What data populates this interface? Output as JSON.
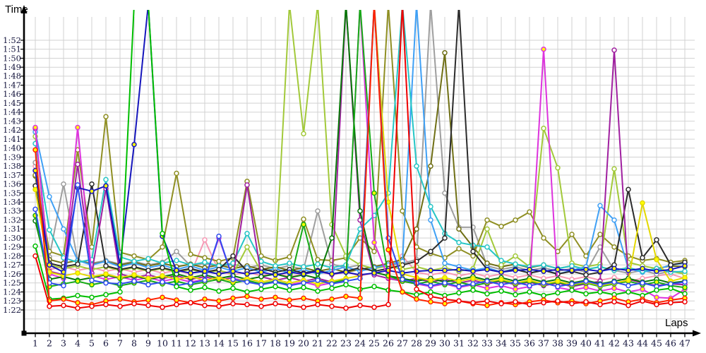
{
  "chart_data": {
    "type": "line",
    "xlabel": "Laps",
    "ylabel": "Time",
    "x_ticks": [
      1,
      2,
      3,
      4,
      5,
      6,
      7,
      8,
      9,
      10,
      11,
      12,
      13,
      14,
      15,
      16,
      17,
      18,
      19,
      20,
      21,
      22,
      23,
      24,
      25,
      26,
      27,
      28,
      29,
      30,
      31,
      32,
      33,
      34,
      35,
      36,
      37,
      38,
      39,
      40,
      41,
      42,
      43,
      44,
      45,
      46,
      47
    ],
    "y_ticks": [
      "1:22",
      "1:23",
      "1:24",
      "1:25",
      "1:26",
      "1:27",
      "1:28",
      "1:29",
      "1:30",
      "1:31",
      "1:32",
      "1:33",
      "1:34",
      "1:35",
      "1:36",
      "1:37",
      "1:38",
      "1:39",
      "1:40",
      "1:41",
      "1:42",
      "1:43",
      "1:44",
      "1:45",
      "1:46",
      "1:47",
      "1:48",
      "1:49",
      "1:50",
      "1:51",
      "1:52"
    ],
    "ylim_seconds": [
      82,
      112
    ],
    "grid": true,
    "legend": "none",
    "colors": {
      "grid": "#d2d2d2",
      "axis": "#000000",
      "tick_label": "#14143c",
      "marker_fill_a": "#ffffff",
      "marker_fill_b": "#ffff00"
    },
    "series": [
      {
        "name": "pink",
        "color": "#f799b5",
        "marker": "#ffffff",
        "values": [
          98.0,
          86.5,
          86.8,
          86.4,
          86.7,
          86.3,
          86.6,
          86.2,
          86.5,
          86.1,
          86.4,
          86.0,
          89.8,
          86.3,
          85.9,
          86.2,
          85.8,
          86.1,
          85.7,
          86.0,
          86.3,
          85.9,
          86.2,
          85.8,
          86.1,
          86.4,
          88.0,
          86.2,
          85.9,
          86.2,
          85.8,
          86.1,
          85.7,
          86.0,
          85.6,
          85.9,
          85.5,
          85.8,
          85.4,
          85.7,
          85.3,
          85.6,
          85.2,
          85.5,
          85.8,
          86.0,
          85.5
        ]
      },
      {
        "name": "gray",
        "color": "#9e9e9e",
        "marker": "#ffffff",
        "values": [
          98.4,
          87.9,
          96.0,
          87.5,
          87.2,
          87.5,
          87.1,
          87.4,
          87.0,
          87.3,
          88.5,
          86.9,
          87.2,
          86.8,
          87.1,
          86.7,
          87.0,
          86.6,
          86.9,
          86.5,
          93.0,
          87.1,
          86.7,
          87.0,
          86.6,
          86.9,
          87.2,
          87.6,
          116,
          95.0,
          91.2,
          91.2,
          86.9,
          86.5,
          86.8,
          86.4,
          86.7,
          86.3,
          86.6,
          86.2,
          89.0,
          86.4,
          86.1,
          86.4,
          86.0,
          86.3,
          86.2
        ]
      },
      {
        "name": "olive-dark",
        "color": "#6f6f15",
        "marker": "#ffffff",
        "values": [
          96.9,
          87.6,
          87.2,
          87.5,
          87.1,
          87.4,
          87.0,
          87.3,
          86.9,
          87.2,
          86.8,
          87.1,
          86.7,
          87.0,
          86.6,
          86.9,
          86.5,
          86.8,
          86.4,
          86.7,
          86.3,
          86.6,
          86.2,
          86.5,
          86.8,
          87.2,
          87.6,
          91.0,
          98.0,
          110.6,
          91.0,
          89.0,
          87.2,
          86.8,
          87.1,
          86.7,
          87.0,
          86.6,
          86.9,
          86.5,
          86.8,
          86.4,
          86.7,
          86.3,
          86.6,
          86.9,
          86.8
        ]
      },
      {
        "name": "olive",
        "color": "#8f8f23",
        "marker": "#ffffff",
        "values": [
          97.0,
          88.5,
          88.0,
          99.8,
          89.0,
          103.5,
          88.4,
          88.0,
          87.6,
          89.0,
          97.2,
          88.2,
          87.8,
          87.4,
          87.8,
          96.3,
          88.0,
          87.5,
          87.9,
          92.1,
          87.6,
          87.5,
          87.8,
          90.0,
          88.5,
          116,
          93.0,
          89.0,
          88.3,
          87.8,
          88.8,
          88.0,
          92.0,
          91.3,
          92.0,
          92.9,
          90.0,
          88.5,
          90.4,
          88.0,
          90.4,
          89.0,
          88.0,
          87.5,
          87.7,
          87.3,
          87.5
        ]
      },
      {
        "name": "yellowgreen",
        "color": "#a2c93a",
        "marker": "#ffffff",
        "values": [
          101.3,
          87.0,
          86.6,
          86.9,
          86.5,
          86.8,
          86.4,
          86.7,
          86.3,
          86.6,
          86.2,
          86.5,
          86.1,
          86.4,
          86.0,
          89.0,
          86.3,
          86.6,
          116,
          101.6,
          116,
          91.5,
          88.0,
          87.0,
          86.6,
          86.9,
          86.5,
          86.8,
          86.4,
          86.7,
          86.3,
          86.6,
          91.0,
          87.0,
          88.0,
          86.8,
          102.2,
          97.8,
          87.2,
          86.8,
          87.1,
          97.7,
          87.3,
          86.9,
          86.6,
          86.3,
          86.0
        ]
      },
      {
        "name": "skyblue",
        "color": "#3fa0f5",
        "marker": "#ffffff",
        "values": [
          101.8,
          94.6,
          91.0,
          87.5,
          87.0,
          87.4,
          86.8,
          87.2,
          86.7,
          87.0,
          86.5,
          86.9,
          86.4,
          86.8,
          86.3,
          86.7,
          86.2,
          86.6,
          86.1,
          86.5,
          86.0,
          86.4,
          86.8,
          86.3,
          86.7,
          87.0,
          87.4,
          116,
          92.0,
          87.2,
          86.8,
          86.4,
          86.7,
          86.2,
          86.6,
          86.1,
          86.5,
          86.0,
          86.4,
          86.8,
          93.6,
          92.0,
          86.6,
          86.2,
          86.5,
          87.0,
          87.2
        ]
      },
      {
        "name": "cyan",
        "color": "#26c6c6",
        "marker": "#ffffff",
        "values": [
          100.5,
          90.9,
          87.8,
          87.3,
          87.6,
          96.5,
          87.9,
          87.4,
          87.7,
          87.2,
          87.5,
          87.0,
          87.3,
          86.9,
          87.2,
          90.5,
          87.4,
          86.9,
          87.2,
          86.8,
          87.1,
          86.7,
          87.0,
          91.0,
          92.5,
          95.0,
          116,
          98.0,
          93.5,
          90.5,
          89.5,
          89.2,
          89.0,
          87.5,
          87.1,
          86.8,
          87.0,
          86.6,
          86.9,
          86.5,
          86.8,
          86.4,
          86.7,
          86.3,
          86.6,
          86.2,
          86.3
        ]
      },
      {
        "name": "black",
        "color": "#2b2b2b",
        "marker": "#ffffff",
        "values": [
          95.8,
          87.2,
          86.8,
          87.1,
          96.0,
          86.9,
          86.5,
          86.8,
          86.4,
          86.7,
          86.3,
          86.6,
          86.2,
          86.5,
          88.0,
          86.3,
          86.6,
          86.2,
          86.5,
          86.1,
          86.4,
          86.0,
          86.3,
          86.7,
          86.3,
          86.6,
          87.0,
          87.4,
          88.5,
          90.0,
          116,
          88.5,
          86.5,
          86.2,
          86.5,
          86.1,
          86.4,
          86.0,
          86.3,
          85.9,
          86.2,
          87.0,
          95.4,
          87.8,
          89.8,
          87.0,
          87.3
        ]
      },
      {
        "name": "purple",
        "color": "#a020a0",
        "marker": "#ffffff",
        "values": [
          102.2,
          86.3,
          85.9,
          98.2,
          86.1,
          95.5,
          86.0,
          85.6,
          85.9,
          85.5,
          85.8,
          85.4,
          85.7,
          85.3,
          85.6,
          95.9,
          85.7,
          85.3,
          85.6,
          85.2,
          85.5,
          85.1,
          116,
          92.0,
          85.9,
          85.5,
          85.2,
          85.5,
          85.1,
          85.4,
          85.0,
          85.3,
          84.9,
          85.2,
          84.8,
          85.1,
          84.7,
          85.0,
          84.6,
          84.9,
          85.2,
          110.9,
          85.4,
          85.0,
          84.7,
          84.9,
          84.8
        ]
      },
      {
        "name": "magenta",
        "color": "#dd33dd",
        "marker": "#ffff00",
        "values": [
          102.3,
          86.0,
          85.5,
          102.3,
          85.8,
          85.4,
          85.7,
          85.3,
          85.6,
          85.2,
          85.5,
          85.1,
          85.4,
          90.0,
          85.5,
          85.2,
          84.9,
          85.2,
          84.8,
          85.1,
          84.7,
          85.0,
          85.3,
          116,
          89.5,
          85.6,
          85.2,
          84.9,
          84.6,
          84.9,
          84.5,
          84.8,
          84.4,
          84.7,
          84.3,
          84.6,
          111.0,
          84.5,
          84.2,
          84.5,
          84.1,
          84.4,
          84.0,
          84.3,
          83.4,
          83.3,
          84.3
        ]
      },
      {
        "name": "darkgreen",
        "color": "#077807",
        "marker": "#ffffff",
        "values": [
          91.9,
          85.4,
          85.7,
          85.3,
          85.6,
          85.9,
          85.5,
          85.8,
          85.4,
          85.7,
          86.0,
          85.6,
          85.9,
          85.5,
          85.8,
          85.4,
          85.7,
          86.0,
          85.6,
          85.9,
          85.5,
          90.0,
          116,
          93.0,
          86.2,
          85.8,
          85.5,
          85.2,
          85.5,
          85.1,
          85.4,
          85.7,
          85.3,
          85.6,
          85.2,
          85.5,
          85.1,
          85.4,
          85.0,
          85.3,
          84.9,
          85.2,
          85.5,
          85.1,
          85.4,
          85.0,
          85.2
        ]
      },
      {
        "name": "green-mid",
        "color": "#16aa16",
        "marker": "#ffff00",
        "values": [
          92.5,
          84.6,
          84.9,
          85.2,
          84.8,
          85.1,
          84.7,
          85.0,
          85.3,
          84.9,
          85.2,
          84.8,
          85.1,
          85.4,
          85.0,
          85.3,
          84.9,
          85.2,
          84.8,
          91.5,
          85.3,
          85.0,
          85.4,
          116,
          95.0,
          85.8,
          85.2,
          84.9,
          85.2,
          84.8,
          85.1,
          84.7,
          85.0,
          85.3,
          84.9,
          85.2,
          84.8,
          85.1,
          84.7,
          85.0,
          84.6,
          84.9,
          85.2,
          84.8,
          85.1,
          84.7,
          84.5
        ]
      },
      {
        "name": "yellow",
        "color": "#e3d800",
        "marker": "#ffff00",
        "values": [
          95.4,
          86.2,
          85.8,
          86.1,
          85.7,
          86.0,
          85.6,
          85.9,
          85.5,
          85.8,
          85.4,
          85.7,
          85.3,
          85.6,
          85.2,
          85.5,
          85.1,
          85.4,
          85.0,
          85.3,
          84.9,
          85.2,
          85.5,
          85.8,
          116,
          94.0,
          86.0,
          85.6,
          85.3,
          85.6,
          85.2,
          85.5,
          85.1,
          85.4,
          85.0,
          85.3,
          84.9,
          85.2,
          84.8,
          85.1,
          84.7,
          85.0,
          85.3,
          93.9,
          87.6,
          85.2,
          85.6
        ]
      },
      {
        "name": "navy",
        "color": "#1616bc",
        "marker": "#ffff00",
        "values": [
          97.5,
          87.0,
          86.2,
          95.6,
          95.2,
          95.8,
          87.0,
          100.4,
          116,
          90.2,
          86.4,
          86.1,
          86.3,
          86.0,
          86.3,
          86.0,
          86.2,
          85.9,
          86.2,
          86.0,
          86.3,
          86.0,
          86.2,
          85.9,
          86.1,
          86.4,
          86.1,
          86.3,
          86.4,
          86.4,
          86.5,
          86.3,
          86.5,
          86.2,
          86.4,
          86.5,
          86.3,
          86.5,
          86.4,
          86.5,
          86.3,
          86.6,
          86.4,
          86.6,
          86.3,
          86.5,
          86.9
        ]
      },
      {
        "name": "blue",
        "color": "#2f4cee",
        "marker": "#ffffff",
        "values": [
          93.2,
          85.0,
          84.7,
          95.9,
          85.3,
          85.0,
          84.9,
          85.2,
          84.8,
          85.1,
          84.7,
          85.0,
          85.3,
          90.2,
          85.4,
          85.1,
          84.8,
          85.1,
          84.7,
          85.0,
          85.3,
          84.9,
          85.2,
          85.5,
          116,
          90.0,
          85.4,
          85.0,
          84.7,
          85.0,
          84.6,
          84.9,
          85.2,
          84.8,
          85.1,
          84.7,
          85.0,
          84.6,
          84.9,
          85.2,
          84.8,
          85.1,
          84.7,
          85.0,
          84.6,
          84.9,
          85.1
        ]
      },
      {
        "name": "green",
        "color": "#00be00",
        "marker": "#ffffff",
        "values": [
          89.1,
          83.2,
          83.3,
          83.6,
          83.4,
          83.7,
          84.0,
          116,
          116,
          90.5,
          84.6,
          84.2,
          84.5,
          84.1,
          84.4,
          84.0,
          84.3,
          84.6,
          84.2,
          84.5,
          84.1,
          84.4,
          84.8,
          84.3,
          84.6,
          84.2,
          84.0,
          83.7,
          84.0,
          83.6,
          83.9,
          84.2,
          83.8,
          84.1,
          83.7,
          84.0,
          83.6,
          83.9,
          84.2,
          83.8,
          84.0,
          83.7,
          84.0,
          83.6,
          84.2,
          84.4,
          83.8
        ]
      },
      {
        "name": "red-b",
        "color": "#ff2200",
        "marker": "#ffff00",
        "values": [
          99.8,
          83.0,
          83.2,
          82.8,
          82.6,
          83.0,
          83.2,
          82.9,
          83.1,
          83.4,
          83.1,
          82.8,
          83.2,
          83.0,
          83.3,
          83.5,
          83.2,
          83.4,
          83.1,
          83.3,
          83.0,
          83.2,
          83.5,
          83.3,
          116,
          88.7,
          84.0,
          83.2,
          82.9,
          82.7,
          83.0,
          82.7,
          82.5,
          82.8,
          82.6,
          82.9,
          83.1,
          82.8,
          83.0,
          82.7,
          83.0,
          83.3,
          82.9,
          83.2,
          82.8,
          83.1,
          83.3
        ]
      },
      {
        "name": "red",
        "color": "#ee0000",
        "marker": "#ffffff",
        "values": [
          88.0,
          82.4,
          82.5,
          82.2,
          82.4,
          82.6,
          82.4,
          82.7,
          82.5,
          82.3,
          82.6,
          82.8,
          82.5,
          82.4,
          82.7,
          82.6,
          82.4,
          82.7,
          82.5,
          82.3,
          82.6,
          82.4,
          82.2,
          82.5,
          82.3,
          82.6,
          116,
          84.3,
          83.5,
          83.2,
          83.0,
          82.8,
          83.0,
          82.7,
          82.9,
          82.6,
          82.8,
          83.0,
          82.7,
          82.9,
          82.6,
          82.9,
          82.5,
          83.0,
          82.6,
          82.8,
          82.9
        ]
      }
    ]
  },
  "labels": {
    "y_axis_title": "Time",
    "x_axis_title": "Laps"
  }
}
